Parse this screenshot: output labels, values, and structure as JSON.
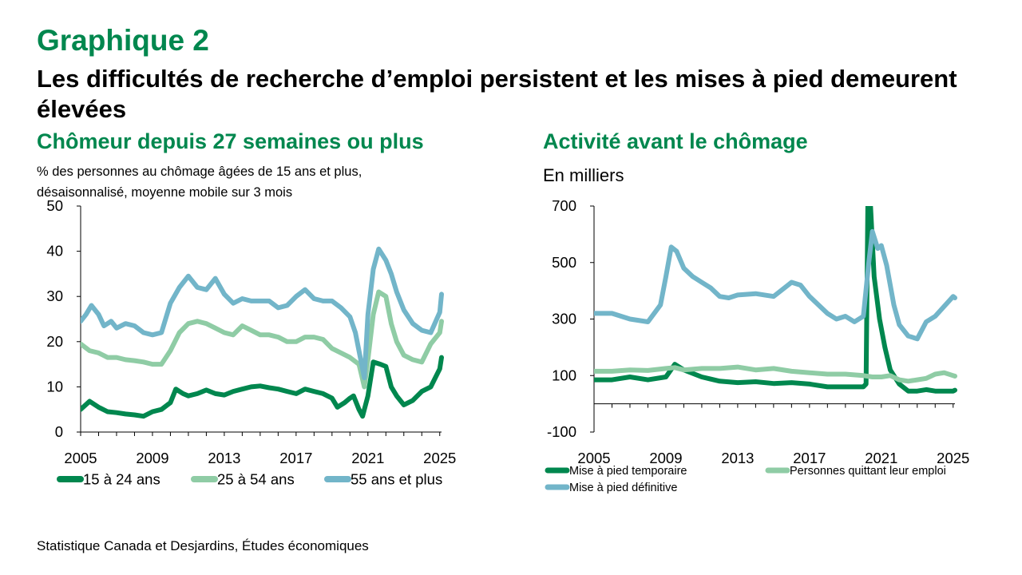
{
  "header": {
    "graph_label": "Graphique 2",
    "title": "Les difficultés de recherche d’emploi persistent et les mises à pied demeurent élevées"
  },
  "source": "Statistique Canada et Desjardins, Études économiques",
  "colors": {
    "accent": "#00874e",
    "dark_green": "#00874e",
    "light_green": "#8fcca5",
    "blue": "#72b5c9"
  },
  "chart_data": [
    {
      "type": "line",
      "title": "Chômeur depuis 27 semaines ou plus",
      "subtitle": "% des personnes au chômage âgées de 15 ans et plus, désaisonnalisé, moyenne mobile sur 3 mois",
      "ylim": [
        0,
        50
      ],
      "yticks": [
        0,
        10,
        20,
        30,
        40,
        50
      ],
      "xlim": [
        2005,
        2025.1
      ],
      "xticks": [
        "2005",
        "2009",
        "2013",
        "2017",
        "2021",
        "2025"
      ],
      "legend_position": "bottom",
      "series": [
        {
          "name": "15 à 24 ans",
          "color": "#00874e",
          "points": [
            [
              2005,
              5
            ],
            [
              2005.5,
              6.8
            ],
            [
              2006,
              5.5
            ],
            [
              2006.5,
              4.5
            ],
            [
              2007,
              4.3
            ],
            [
              2007.5,
              4.0
            ],
            [
              2008,
              3.8
            ],
            [
              2008.5,
              3.5
            ],
            [
              2009,
              4.5
            ],
            [
              2009.5,
              5.0
            ],
            [
              2010,
              6.5
            ],
            [
              2010.3,
              9.5
            ],
            [
              2010.7,
              8.5
            ],
            [
              2011,
              8.0
            ],
            [
              2011.5,
              8.5
            ],
            [
              2012,
              9.3
            ],
            [
              2012.5,
              8.5
            ],
            [
              2013,
              8.2
            ],
            [
              2013.5,
              9.0
            ],
            [
              2014,
              9.5
            ],
            [
              2014.5,
              10.0
            ],
            [
              2015,
              10.2
            ],
            [
              2015.5,
              9.8
            ],
            [
              2016,
              9.5
            ],
            [
              2016.5,
              9.0
            ],
            [
              2017,
              8.5
            ],
            [
              2017.5,
              9.5
            ],
            [
              2018,
              9.0
            ],
            [
              2018.5,
              8.5
            ],
            [
              2019,
              7.5
            ],
            [
              2019.3,
              5.5
            ],
            [
              2019.7,
              6.5
            ],
            [
              2020,
              7.5
            ],
            [
              2020.2,
              8.0
            ],
            [
              2020.5,
              5.0
            ],
            [
              2020.7,
              3.5
            ],
            [
              2021,
              8.0
            ],
            [
              2021.3,
              15.5
            ],
            [
              2021.7,
              15.0
            ],
            [
              2022,
              14.5
            ],
            [
              2022.3,
              10.0
            ],
            [
              2022.6,
              8.0
            ],
            [
              2023,
              6.0
            ],
            [
              2023.5,
              7.0
            ],
            [
              2024,
              9.0
            ],
            [
              2024.5,
              10.0
            ],
            [
              2025,
              14.0
            ],
            [
              2025.1,
              16.5
            ]
          ]
        },
        {
          "name": "25 à 54 ans",
          "color": "#8fcca5",
          "points": [
            [
              2005,
              19.5
            ],
            [
              2005.5,
              18.0
            ],
            [
              2006,
              17.5
            ],
            [
              2006.5,
              16.5
            ],
            [
              2007,
              16.5
            ],
            [
              2007.5,
              16.0
            ],
            [
              2008,
              15.8
            ],
            [
              2008.5,
              15.5
            ],
            [
              2009,
              15.0
            ],
            [
              2009.5,
              15.0
            ],
            [
              2010,
              18.0
            ],
            [
              2010.5,
              22.0
            ],
            [
              2011,
              24.0
            ],
            [
              2011.5,
              24.5
            ],
            [
              2012,
              24.0
            ],
            [
              2012.5,
              23.0
            ],
            [
              2013,
              22.0
            ],
            [
              2013.5,
              21.5
            ],
            [
              2014,
              23.5
            ],
            [
              2014.5,
              22.5
            ],
            [
              2015,
              21.5
            ],
            [
              2015.5,
              21.5
            ],
            [
              2016,
              21.0
            ],
            [
              2016.5,
              20.0
            ],
            [
              2017,
              20.0
            ],
            [
              2017.5,
              21.0
            ],
            [
              2018,
              21.0
            ],
            [
              2018.5,
              20.5
            ],
            [
              2019,
              18.5
            ],
            [
              2019.5,
              17.5
            ],
            [
              2020,
              16.5
            ],
            [
              2020.5,
              15.0
            ],
            [
              2020.8,
              10.0
            ],
            [
              2021,
              16.0
            ],
            [
              2021.3,
              26.0
            ],
            [
              2021.6,
              31.0
            ],
            [
              2022,
              30.0
            ],
            [
              2022.3,
              24.0
            ],
            [
              2022.6,
              20.0
            ],
            [
              2023,
              17.0
            ],
            [
              2023.5,
              16.0
            ],
            [
              2024,
              15.5
            ],
            [
              2024.5,
              19.5
            ],
            [
              2025,
              22.0
            ],
            [
              2025.1,
              24.5
            ]
          ]
        },
        {
          "name": "55 ans et plus",
          "color": "#72b5c9",
          "points": [
            [
              2005,
              24.5
            ],
            [
              2005.3,
              26.0
            ],
            [
              2005.6,
              28.0
            ],
            [
              2006,
              26.0
            ],
            [
              2006.3,
              23.5
            ],
            [
              2006.7,
              24.5
            ],
            [
              2007,
              23.0
            ],
            [
              2007.5,
              24.0
            ],
            [
              2008,
              23.5
            ],
            [
              2008.5,
              22.0
            ],
            [
              2009,
              21.5
            ],
            [
              2009.5,
              22.0
            ],
            [
              2010,
              28.5
            ],
            [
              2010.5,
              32.0
            ],
            [
              2011,
              34.5
            ],
            [
              2011.5,
              32.0
            ],
            [
              2012,
              31.5
            ],
            [
              2012.5,
              34.0
            ],
            [
              2013,
              30.5
            ],
            [
              2013.5,
              28.5
            ],
            [
              2014,
              29.5
            ],
            [
              2014.5,
              29.0
            ],
            [
              2015,
              29.0
            ],
            [
              2015.5,
              29.0
            ],
            [
              2016,
              27.5
            ],
            [
              2016.5,
              28.0
            ],
            [
              2017,
              30.0
            ],
            [
              2017.5,
              31.5
            ],
            [
              2018,
              29.5
            ],
            [
              2018.5,
              29.0
            ],
            [
              2019,
              29.0
            ],
            [
              2019.5,
              27.5
            ],
            [
              2020,
              25.5
            ],
            [
              2020.3,
              22.0
            ],
            [
              2020.6,
              16.0
            ],
            [
              2020.8,
              12.0
            ],
            [
              2021,
              26.0
            ],
            [
              2021.3,
              36.0
            ],
            [
              2021.6,
              40.5
            ],
            [
              2022,
              38.0
            ],
            [
              2022.3,
              35.0
            ],
            [
              2022.6,
              31.0
            ],
            [
              2023,
              27.0
            ],
            [
              2023.5,
              24.0
            ],
            [
              2024,
              22.5
            ],
            [
              2024.5,
              22.0
            ],
            [
              2025,
              26.5
            ],
            [
              2025.1,
              30.5
            ]
          ]
        }
      ]
    },
    {
      "type": "line",
      "title": "Activité avant le chômage",
      "unit": "En milliers",
      "ylim": [
        -100,
        700
      ],
      "yticks": [
        -100,
        100,
        300,
        500,
        700
      ],
      "xlim": [
        2005,
        2025.1
      ],
      "xticks": [
        "2005",
        "2009",
        "2013",
        "2017",
        "2021",
        "2025"
      ],
      "legend_position": "bottom",
      "series": [
        {
          "name": "Mise à pied temporaire",
          "color": "#00874e",
          "points": [
            [
              2005,
              85
            ],
            [
              2006,
              85
            ],
            [
              2007,
              95
            ],
            [
              2008,
              85
            ],
            [
              2009,
              95
            ],
            [
              2009.5,
              140
            ],
            [
              2010,
              120
            ],
            [
              2011,
              95
            ],
            [
              2012,
              80
            ],
            [
              2013,
              75
            ],
            [
              2014,
              78
            ],
            [
              2015,
              72
            ],
            [
              2016,
              75
            ],
            [
              2017,
              70
            ],
            [
              2018,
              60
            ],
            [
              2019,
              60
            ],
            [
              2020,
              60
            ],
            [
              2020.15,
              70
            ],
            [
              2020.25,
              700
            ],
            [
              2020.4,
              700
            ],
            [
              2020.6,
              450
            ],
            [
              2020.9,
              300
            ],
            [
              2021.2,
              200
            ],
            [
              2021.5,
              120
            ],
            [
              2022,
              70
            ],
            [
              2022.5,
              45
            ],
            [
              2023,
              45
            ],
            [
              2023.5,
              50
            ],
            [
              2024,
              45
            ],
            [
              2024.5,
              45
            ],
            [
              2025,
              45
            ],
            [
              2025.1,
              48
            ]
          ]
        },
        {
          "name": "Personnes quittant leur emploi",
          "color": "#8fcca5",
          "points": [
            [
              2005,
              115
            ],
            [
              2006,
              115
            ],
            [
              2007,
              120
            ],
            [
              2008,
              118
            ],
            [
              2009,
              125
            ],
            [
              2009.5,
              128
            ],
            [
              2010,
              120
            ],
            [
              2011,
              125
            ],
            [
              2012,
              125
            ],
            [
              2013,
              130
            ],
            [
              2014,
              120
            ],
            [
              2015,
              125
            ],
            [
              2016,
              115
            ],
            [
              2017,
              110
            ],
            [
              2018,
              105
            ],
            [
              2019,
              105
            ],
            [
              2020,
              100
            ],
            [
              2020.5,
              95
            ],
            [
              2021,
              95
            ],
            [
              2021.5,
              100
            ],
            [
              2022,
              85
            ],
            [
              2022.5,
              80
            ],
            [
              2023,
              85
            ],
            [
              2023.5,
              90
            ],
            [
              2024,
              105
            ],
            [
              2024.5,
              110
            ],
            [
              2025,
              100
            ],
            [
              2025.1,
              98
            ]
          ]
        },
        {
          "name": "Mise à pied définitive",
          "color": "#72b5c9",
          "points": [
            [
              2005,
              320
            ],
            [
              2006,
              320
            ],
            [
              2007,
              300
            ],
            [
              2008,
              290
            ],
            [
              2008.7,
              350
            ],
            [
              2009,
              450
            ],
            [
              2009.3,
              555
            ],
            [
              2009.6,
              540
            ],
            [
              2010,
              480
            ],
            [
              2010.5,
              450
            ],
            [
              2011,
              430
            ],
            [
              2011.5,
              410
            ],
            [
              2012,
              380
            ],
            [
              2012.5,
              375
            ],
            [
              2013,
              385
            ],
            [
              2014,
              390
            ],
            [
              2015,
              380
            ],
            [
              2016,
              430
            ],
            [
              2016.5,
              420
            ],
            [
              2017,
              380
            ],
            [
              2017.5,
              350
            ],
            [
              2018,
              320
            ],
            [
              2018.5,
              300
            ],
            [
              2019,
              310
            ],
            [
              2019.5,
              290
            ],
            [
              2020,
              310
            ],
            [
              2020.3,
              500
            ],
            [
              2020.5,
              610
            ],
            [
              2020.8,
              550
            ],
            [
              2021,
              560
            ],
            [
              2021.3,
              490
            ],
            [
              2021.7,
              350
            ],
            [
              2022,
              280
            ],
            [
              2022.5,
              240
            ],
            [
              2023,
              230
            ],
            [
              2023.5,
              290
            ],
            [
              2024,
              310
            ],
            [
              2024.5,
              345
            ],
            [
              2025,
              380
            ],
            [
              2025.1,
              375
            ]
          ]
        }
      ]
    }
  ]
}
